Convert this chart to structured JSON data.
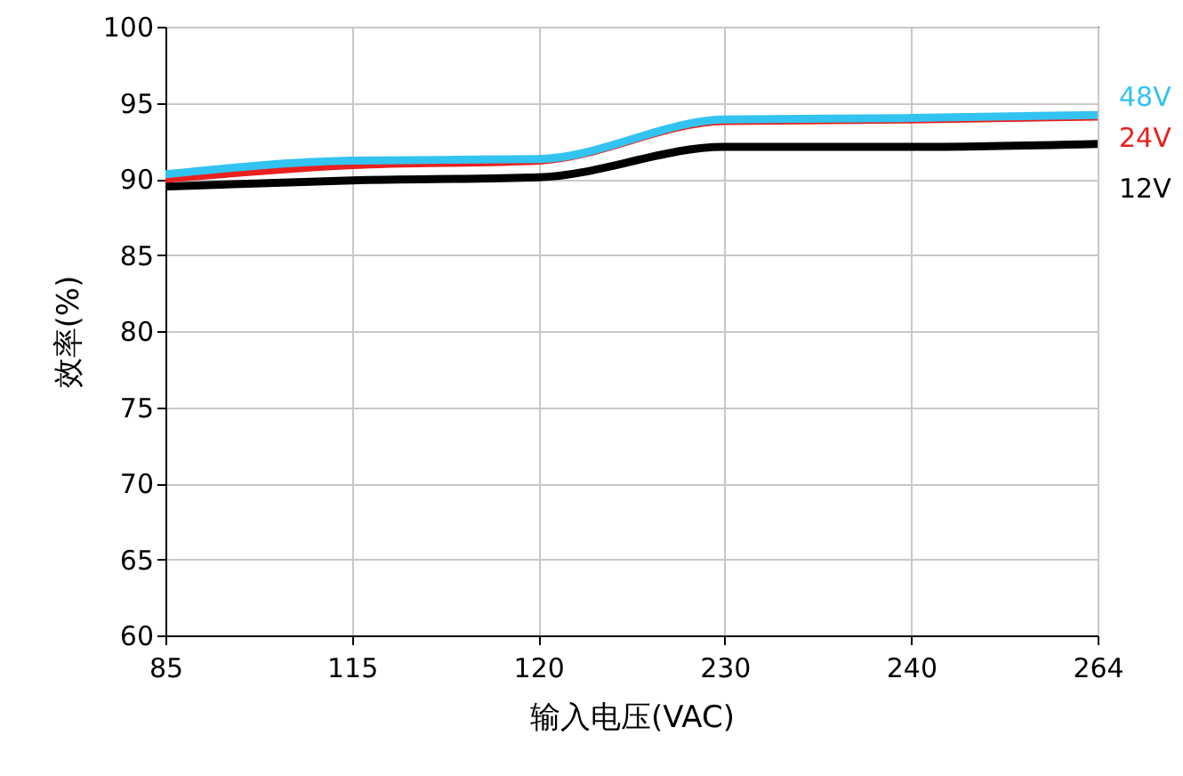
{
  "chart_data": {
    "type": "line",
    "xlabel": "输入电压(VAC)",
    "ylabel": "效率(%)",
    "categories": [
      "85",
      "115",
      "120",
      "230",
      "240",
      "264"
    ],
    "ylim": [
      60,
      100
    ],
    "yticks": [
      60,
      65,
      70,
      75,
      80,
      85,
      90,
      95,
      100
    ],
    "grid": true,
    "series": [
      {
        "name": "48V",
        "color": "#33c3f0",
        "values": [
          90.3,
          91.2,
          91.3,
          93.9,
          94.0,
          94.2
        ]
      },
      {
        "name": "24V",
        "color": "#e8201f",
        "values": [
          90.0,
          90.9,
          91.2,
          93.8,
          93.9,
          94.1
        ]
      },
      {
        "name": "12V",
        "color": "#000000",
        "values": [
          89.5,
          89.9,
          90.1,
          92.1,
          92.1,
          92.3
        ]
      }
    ]
  }
}
